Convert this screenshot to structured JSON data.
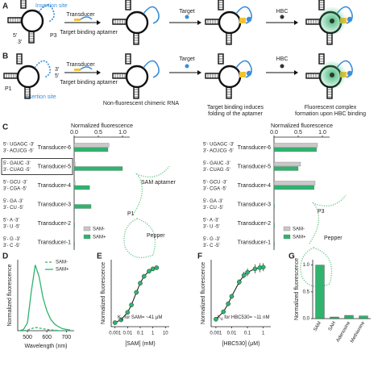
{
  "panel_labels": [
    "A",
    "B",
    "C",
    "D",
    "E",
    "F",
    "G"
  ],
  "panel_a": {
    "insertion_site": "Insertion site",
    "p3": "P3",
    "five": "5'",
    "three": "3'",
    "transducer": "Transducer",
    "aptamer": "Target binding aptamer",
    "target": "Target",
    "hbc": "HBC"
  },
  "panel_b": {
    "p1": "P1",
    "insertion_site": "Insertion site",
    "five": "5'",
    "three": "3'",
    "transducer": "Transducer",
    "aptamer": "Target binding aptamer",
    "target": "Target",
    "hbc": "HBC",
    "caption_1": "Non-fluorescent chimeric RNA",
    "caption_2": [
      "Target binding induces",
      "folding of the aptamer"
    ],
    "caption_3": [
      "Fluorescent complex",
      "formation upon HBC binding"
    ]
  },
  "chart_data": [
    {
      "type": "hbar",
      "xlabel": "Normalized fluorescence",
      "categories": [
        "Transducer-6",
        "Transducer-5",
        "Transducer-4",
        "Transducer-3",
        "Transducer-2",
        "Transducer-1"
      ],
      "sequences": [
        [
          "5'- UGAGC -3'",
          "3'- ACUCG -5'"
        ],
        [
          "5'- GAUC -3'",
          "3'- CUAG -5'"
        ],
        [
          "5'- GCU -3'",
          "3'- CGA -5'"
        ],
        [
          "5'- GA -3'",
          "3'- CU -5'"
        ],
        [
          "5'- A -3'",
          "3'- U -5'"
        ],
        [
          "5'- G -3'",
          "3'- C -5'"
        ]
      ],
      "series": [
        {
          "name": "SAM-",
          "color": "#c8c8c8",
          "values": [
            0.72,
            0.02,
            0.02,
            0.01,
            0.01,
            0.01
          ]
        },
        {
          "name": "SAM+",
          "color": "#2fb36e",
          "values": [
            0.7,
            1.0,
            0.32,
            0.35,
            0.01,
            0.01
          ]
        }
      ],
      "xlim": [
        0,
        1.15
      ],
      "xticks": [
        {
          "value": 0,
          "label": "0.0"
        },
        {
          "value": 0.5,
          "label": "0.5"
        },
        {
          "value": 1,
          "label": "1.0"
        }
      ],
      "annotations": [
        "SAM aptamer",
        "Pepper",
        "P1"
      ]
    },
    {
      "type": "hbar",
      "xlabel": "Normalized fluorescence",
      "categories": [
        "Transducer-6",
        "Transducer-5",
        "Transducer-4",
        "Transducer-3",
        "Transducer-2",
        "Transducer-1"
      ],
      "sequences": [
        [
          "5'- UGAGC -3'",
          "3'- ACUCG -5'"
        ],
        [
          "5'- GAUC -3'",
          "3'- CUAG -5'"
        ],
        [
          "5'- GCU -3'",
          "3'- CGA -5'"
        ],
        [
          "5'- GA -3'",
          "3'- CU -5'"
        ],
        [
          "5'- A -3'",
          "3'- U -5'"
        ],
        [
          "5'- G -3'",
          "3'- C -5'"
        ]
      ],
      "series": [
        {
          "name": "SAM-",
          "color": "#c8c8c8",
          "values": [
            0.9,
            0.55,
            0.85,
            0.01,
            0.01,
            0.01
          ]
        },
        {
          "name": "SAM+",
          "color": "#2fb36e",
          "values": [
            0.88,
            0.5,
            0.83,
            0.01,
            0.01,
            0.01
          ]
        }
      ],
      "xlim": [
        0,
        1.15
      ],
      "xticks": [
        {
          "value": 0,
          "label": "0.0"
        },
        {
          "value": 0.5,
          "label": "0.5"
        },
        {
          "value": 1,
          "label": "1.0"
        }
      ],
      "annotations": [
        "P3",
        "Pepper"
      ]
    },
    {
      "type": "line",
      "xlabel": "Wavelength (nm)",
      "ylabel": "Normalized fluorescence",
      "x": [
        460,
        480,
        500,
        520,
        540,
        560,
        580,
        600,
        620,
        640,
        660,
        680,
        700,
        720
      ],
      "series": [
        {
          "name": "SAM-",
          "color": "#2fb36e",
          "dashed": true,
          "values": [
            0,
            0,
            0.01,
            0.03,
            0.05,
            0.04,
            0.03,
            0.02,
            0.01,
            0.01,
            0,
            0,
            0,
            0
          ]
        },
        {
          "name": "SAM+",
          "color": "#2fb36e",
          "dashed": false,
          "values": [
            0,
            0.02,
            0.12,
            0.6,
            1.0,
            0.82,
            0.5,
            0.3,
            0.17,
            0.1,
            0.06,
            0.03,
            0.02,
            0.01
          ]
        }
      ],
      "xlim": [
        450,
        740
      ],
      "xticks": [
        500,
        600,
        700
      ],
      "ylim": [
        0,
        1.08
      ]
    },
    {
      "type": "scatter",
      "log_x": true,
      "xlabel": "[SAM] (mM)",
      "ylabel": "Normalized fluorescence",
      "x": [
        0.001,
        0.003,
        0.01,
        0.02,
        0.05,
        0.1,
        0.2,
        0.5,
        1,
        2
      ],
      "values": [
        0.02,
        0.07,
        0.2,
        0.33,
        0.55,
        0.71,
        0.83,
        0.92,
        0.96,
        0.98
      ],
      "color": "#2fb36e",
      "xlim": [
        0.0005,
        20
      ],
      "xticks": [
        0.001,
        0.01,
        0.1,
        1,
        10
      ],
      "ylim": [
        -0.05,
        1.12
      ],
      "annotation": [
        "K",
        "d",
        " for SAM= ~41 μM"
      ]
    },
    {
      "type": "scatter",
      "log_x": true,
      "xlabel": "[HBC530] (μM)",
      "ylabel": "Normalized fluorescence",
      "x": [
        0.001,
        0.003,
        0.006,
        0.01,
        0.03,
        0.06,
        0.1,
        0.3,
        0.6,
        1
      ],
      "values": [
        0.08,
        0.21,
        0.35,
        0.48,
        0.73,
        0.85,
        0.9,
        0.96,
        0.98,
        0.99
      ],
      "errors": [
        0.02,
        0.03,
        0.04,
        0.04,
        0.05,
        0.06,
        0.07,
        0.08,
        0.08,
        0.07
      ],
      "color": "#2fb36e",
      "xlim": [
        0.0005,
        3
      ],
      "xticks": [
        0.001,
        0.01,
        0.1,
        1
      ],
      "ylim": [
        -0.05,
        1.12
      ],
      "annotation": [
        "K",
        "d",
        " for HBC530= ~11 nM"
      ]
    },
    {
      "type": "bar",
      "ylabel": "Normalized fluorescence",
      "categories": [
        "SAM",
        "SAH",
        "Adenosine",
        "Methionine"
      ],
      "values": [
        1.0,
        0.03,
        0.06,
        0.05
      ],
      "color": "#2fb36e",
      "ylim": [
        0,
        1.1
      ],
      "yticks": [
        {
          "value": 0,
          "label": "0.0"
        },
        {
          "value": 0.5,
          "label": "0.5"
        },
        {
          "value": 1,
          "label": "1.0"
        }
      ]
    }
  ]
}
